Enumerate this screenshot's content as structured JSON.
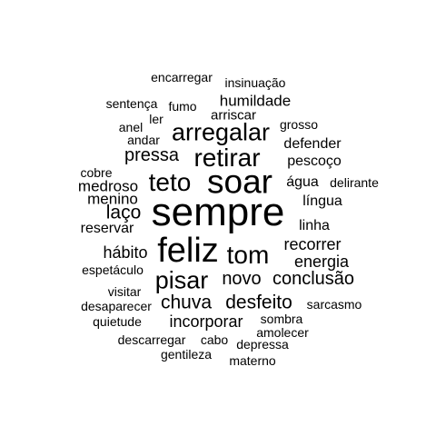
{
  "word_cloud": {
    "text_color": "#000000",
    "background_color": "#ffffff",
    "words": [
      {
        "text": "sempre",
        "weight": 100
      },
      {
        "text": "soar",
        "weight": 82
      },
      {
        "text": "feliz",
        "weight": 84
      },
      {
        "text": "teto",
        "weight": 66
      },
      {
        "text": "retirar",
        "weight": 66
      },
      {
        "text": "tom",
        "weight": 66
      },
      {
        "text": "arregalar",
        "weight": 60
      },
      {
        "text": "pisar",
        "weight": 60
      },
      {
        "text": "laço",
        "weight": 46
      },
      {
        "text": "chuva",
        "weight": 46
      },
      {
        "text": "desfeito",
        "weight": 46
      },
      {
        "text": "pressa",
        "weight": 44
      },
      {
        "text": "novo",
        "weight": 44
      },
      {
        "text": "conclusão",
        "weight": 44
      },
      {
        "text": "hábito",
        "weight": 40
      },
      {
        "text": "recorrer",
        "weight": 40
      },
      {
        "text": "energia",
        "weight": 40
      },
      {
        "text": "incorporar",
        "weight": 40
      },
      {
        "text": "medroso",
        "weight": 38
      },
      {
        "text": "menino",
        "weight": 38
      },
      {
        "text": "humildade",
        "weight": 38
      },
      {
        "text": "defender",
        "weight": 36
      },
      {
        "text": "pescoço",
        "weight": 36
      },
      {
        "text": "água",
        "weight": 36
      },
      {
        "text": "língua",
        "weight": 36
      },
      {
        "text": "linha",
        "weight": 36
      },
      {
        "text": "reservar",
        "weight": 36
      },
      {
        "text": "arriscar",
        "weight": 34
      },
      {
        "text": "sombra",
        "weight": 30
      },
      {
        "text": "amolecer",
        "weight": 30
      },
      {
        "text": "depressa",
        "weight": 30
      },
      {
        "text": "materno",
        "weight": 30
      },
      {
        "text": "gentileza",
        "weight": 30
      },
      {
        "text": "descarregar",
        "weight": 30
      },
      {
        "text": "cabo",
        "weight": 30
      },
      {
        "text": "quietude",
        "weight": 30
      },
      {
        "text": "desaparecer",
        "weight": 30
      },
      {
        "text": "visitar",
        "weight": 30
      },
      {
        "text": "espetáculo",
        "weight": 30
      },
      {
        "text": "sarcasmo",
        "weight": 30
      },
      {
        "text": "delirante",
        "weight": 30
      },
      {
        "text": "grosso",
        "weight": 30
      },
      {
        "text": "cobre",
        "weight": 30
      },
      {
        "text": "andar",
        "weight": 30
      },
      {
        "text": "anel",
        "weight": 30
      },
      {
        "text": "ler",
        "weight": 30
      },
      {
        "text": "sentença",
        "weight": 30
      },
      {
        "text": "fumo",
        "weight": 30
      },
      {
        "text": "encarregar",
        "weight": 30
      },
      {
        "text": "insinuação",
        "weight": 30
      }
    ]
  }
}
